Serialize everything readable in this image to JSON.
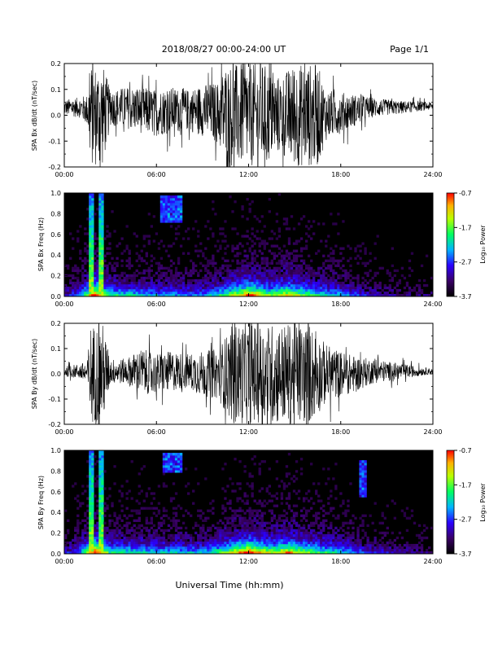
{
  "header": {
    "title": "2018/08/27  00:00-24:00 UT",
    "page": "Page 1/1"
  },
  "x_axis_title": "Universal Time (hh:mm)",
  "x_ticks": [
    "00:00",
    "06:00",
    "12:00",
    "18:00",
    "24:00"
  ],
  "colorbar": {
    "label": "Log₁₀ Power",
    "ticks": [
      "-0.7",
      "-1.7",
      "-2.7",
      "-3.7"
    ]
  },
  "chart_data": [
    {
      "type": "line",
      "ylabel": "SPA Bx dB/dt (nT/sec)",
      "xlim": [
        0,
        24
      ],
      "ylim": [
        -0.2,
        0.2
      ],
      "y_ticks": [
        "0.2",
        "0.1",
        "0.0",
        "-0.1",
        "-0.2"
      ],
      "envelope": {
        "x": [
          0,
          1,
          1.5,
          1.7,
          2.5,
          3,
          4,
          5,
          6,
          7,
          8,
          9,
          10,
          10.5,
          11,
          12,
          13,
          14,
          15,
          16,
          16.5,
          17,
          18,
          19,
          20,
          21,
          22,
          23,
          24
        ],
        "amplitude": [
          0.03,
          0.04,
          0.06,
          0.2,
          0.2,
          0.07,
          0.08,
          0.09,
          0.09,
          0.09,
          0.08,
          0.1,
          0.12,
          0.2,
          0.2,
          0.2,
          0.2,
          0.15,
          0.2,
          0.2,
          0.2,
          0.1,
          0.08,
          0.06,
          0.04,
          0.03,
          0.025,
          0.02,
          0.015
        ],
        "baseline": [
          0.03,
          0.03,
          0.02,
          0.0,
          0.0,
          0.03,
          0.03,
          0.02,
          0.01,
          0.02,
          0.02,
          0.02,
          0.01,
          0.0,
          0.0,
          0.0,
          0.0,
          0.0,
          0.0,
          0.0,
          0.0,
          0.0,
          0.01,
          0.02,
          0.03,
          0.03,
          0.03,
          0.035,
          0.035
        ]
      }
    },
    {
      "type": "heatmap",
      "ylabel": "SPA Bx Freq (Hz)",
      "xlim": [
        0,
        24
      ],
      "ylim": [
        0,
        1.0
      ],
      "y_ticks": [
        "1.0",
        "0.8",
        "0.6",
        "0.4",
        "0.2",
        "0.0"
      ],
      "value_range": [
        -3.7,
        -0.7
      ],
      "bright_bands": [
        [
          1.6,
          1.9
        ],
        [
          2.3,
          2.6
        ]
      ],
      "low_freq_activity": {
        "x": [
          0,
          1,
          2,
          3,
          6,
          9,
          10.5,
          12,
          13.5,
          14.5,
          16,
          18,
          20,
          24
        ],
        "strength": [
          0.2,
          0.35,
          0.9,
          0.5,
          0.4,
          0.35,
          0.55,
          0.85,
          0.6,
          0.75,
          0.55,
          0.4,
          0.2,
          0.1
        ]
      },
      "patches": [
        {
          "x": [
            6.3,
            7.7
          ],
          "f": [
            0.72,
            0.98
          ]
        }
      ]
    },
    {
      "type": "line",
      "ylabel": "SPA By dB/dt (nT/sec)",
      "xlim": [
        0,
        24
      ],
      "ylim": [
        -0.2,
        0.2
      ],
      "y_ticks": [
        "0.2",
        "0.1",
        "0.0",
        "-0.1",
        "-0.2"
      ],
      "envelope": {
        "x": [
          0,
          1,
          1.5,
          1.7,
          2.5,
          3,
          4,
          5,
          6,
          7,
          8,
          9,
          10,
          11,
          12,
          13,
          14,
          15,
          16,
          17,
          18,
          19,
          20,
          21,
          22,
          23,
          24
        ],
        "amplitude": [
          0.02,
          0.03,
          0.05,
          0.2,
          0.2,
          0.05,
          0.05,
          0.09,
          0.08,
          0.08,
          0.07,
          0.09,
          0.1,
          0.2,
          0.2,
          0.2,
          0.2,
          0.2,
          0.2,
          0.12,
          0.09,
          0.07,
          0.05,
          0.04,
          0.03,
          0.02,
          0.01
        ],
        "baseline": [
          0.01,
          0.01,
          0.0,
          0.0,
          0.0,
          0.01,
          0.01,
          0.01,
          0.0,
          0.01,
          0.01,
          0.0,
          0.0,
          0.0,
          0.0,
          0.0,
          0.0,
          0.0,
          0.0,
          0.0,
          0.0,
          0.0,
          0.01,
          0.01,
          0.01,
          0.01,
          0.01
        ]
      }
    },
    {
      "type": "heatmap",
      "ylabel": "SPA By Freq (Hz)",
      "xlim": [
        0,
        24
      ],
      "ylim": [
        0,
        1.0
      ],
      "y_ticks": [
        "1.0",
        "0.8",
        "0.6",
        "0.4",
        "0.2",
        "0.0"
      ],
      "value_range": [
        -3.7,
        -0.7
      ],
      "bright_bands": [
        [
          1.6,
          1.9
        ],
        [
          2.3,
          2.6
        ]
      ],
      "low_freq_activity": {
        "x": [
          0,
          1,
          2,
          3,
          6,
          9,
          10.5,
          12,
          13.5,
          14.5,
          16,
          18,
          20,
          24
        ],
        "strength": [
          0.2,
          0.35,
          0.9,
          0.5,
          0.45,
          0.4,
          0.6,
          0.9,
          0.65,
          0.8,
          0.6,
          0.45,
          0.25,
          0.1
        ]
      },
      "patches": [
        {
          "x": [
            6.4,
            7.6
          ],
          "f": [
            0.78,
            0.98
          ]
        },
        {
          "x": [
            19.2,
            19.7
          ],
          "f": [
            0.55,
            0.9
          ]
        }
      ]
    }
  ]
}
